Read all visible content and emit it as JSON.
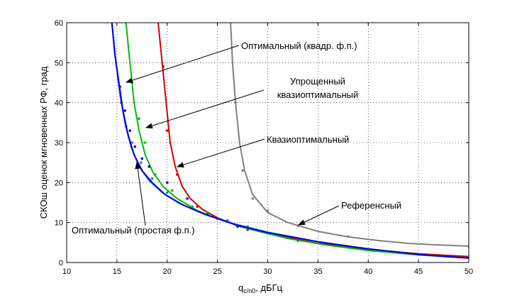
{
  "chart_data": {
    "type": "line",
    "xlabel": "q",
    "xlabel_sub": "c/n0",
    "xlabel_unit": ", дБГц",
    "ylabel": "СКОш оценок мгновенных РФ, град",
    "xlim": [
      10,
      50
    ],
    "ylim": [
      0,
      60
    ],
    "xticks": [
      10,
      15,
      20,
      25,
      30,
      35,
      40,
      45,
      50
    ],
    "yticks": [
      0,
      10,
      20,
      30,
      40,
      50,
      60
    ],
    "grid": true,
    "series": [
      {
        "key": "reference",
        "color": "#808080",
        "x": [
          26.3,
          26.5,
          26.8,
          27.2,
          27.7,
          28.5,
          30,
          32,
          35,
          38,
          41,
          44,
          47,
          50
        ],
        "y": [
          60,
          50,
          40,
          30,
          23,
          17,
          12.5,
          10,
          7.8,
          6.4,
          5.5,
          4.8,
          4.4,
          4.1
        ],
        "markers": {
          "x": [
            26.8,
            27.5,
            28.5,
            30,
            33,
            38,
            50
          ],
          "y": [
            40,
            23,
            16,
            13,
            9.2,
            6.5,
            4
          ]
        }
      },
      {
        "key": "quasi",
        "color": "#cc0000",
        "x": [
          19.1,
          19.5,
          19.9,
          20.3,
          20.8,
          21.5,
          22.3,
          23.5,
          25,
          27,
          30,
          35,
          40,
          45,
          50
        ],
        "y": [
          60,
          50,
          40,
          30,
          24,
          19,
          16,
          13.3,
          11.2,
          9.2,
          7.2,
          4.8,
          3.3,
          2.2,
          1.5
        ],
        "markers": {
          "x": [
            19.6,
            20,
            21,
            23,
            25,
            28,
            33
          ],
          "y": [
            49,
            33,
            22,
            14,
            11,
            8.2,
            5.5
          ]
        }
      },
      {
        "key": "simplified",
        "color": "#00bb00",
        "x": [
          15.9,
          16.3,
          16.7,
          17.2,
          17.8,
          18.6,
          19.6,
          21,
          23,
          25,
          28,
          32,
          36,
          40,
          45,
          50
        ],
        "y": [
          60,
          50,
          40,
          33,
          27,
          22.5,
          19,
          16,
          13,
          11,
          8.5,
          6,
          4.3,
          3,
          1.9,
          1.1
        ],
        "markers": {
          "x": [
            16.5,
            17.2,
            17.8,
            18.8,
            20.5,
            24,
            28
          ],
          "y": [
            45,
            36,
            30,
            22,
            18,
            12.5,
            9
          ]
        }
      },
      {
        "key": "optimal_quad",
        "color": "#2277dd",
        "x": [
          14.5,
          14.9,
          15.3,
          15.8,
          16.4,
          17.2,
          18.2,
          19.5,
          21.2,
          23.5,
          26.5,
          30,
          35,
          40,
          45,
          50
        ],
        "y": [
          60,
          50,
          42,
          35,
          29,
          24,
          20.5,
          17.5,
          14.8,
          12.3,
          9.8,
          7.6,
          5.2,
          3.4,
          2,
          1.1
        ],
        "markers": {
          "x": [
            15.4,
            15.9,
            16.5,
            17.4,
            18.5,
            20,
            22.5,
            26
          ],
          "y": [
            40,
            34,
            30,
            25,
            21,
            17.5,
            14,
            10.5
          ]
        }
      },
      {
        "key": "optimal_simple",
        "color": "#0000dd",
        "x": [
          14.5,
          14.8,
          15.2,
          15.6,
          16.1,
          16.7,
          17.5,
          18.5,
          19.8,
          21.5,
          23.8,
          27,
          30,
          35,
          40,
          45,
          50
        ],
        "y": [
          60,
          52,
          45,
          38,
          32,
          27,
          23,
          20,
          17,
          14.5,
          12,
          9.3,
          7.5,
          5.2,
          3.4,
          2,
          1.1
        ],
        "markers": {
          "x": [
            15.3,
            15.8,
            16.3,
            16.8,
            17.5,
            18.2,
            20,
            22,
            24,
            27
          ],
          "y": [
            44,
            38,
            33,
            29,
            26,
            24,
            20,
            16,
            12,
            9
          ]
        }
      }
    ],
    "annotations": [
      {
        "key": "optimal_quad",
        "lines": [
          "Оптимальный (квадр. ф.п.)"
        ]
      },
      {
        "key": "simplified",
        "lines": [
          "Упрощенный",
          "квазиоптимальный"
        ]
      },
      {
        "key": "quasi",
        "lines": [
          "Квазиоптимальный"
        ]
      },
      {
        "key": "reference",
        "lines": [
          "Референсный"
        ]
      },
      {
        "key": "optimal_simple",
        "lines": [
          "Оптимальный (простая ф.п.)"
        ]
      }
    ]
  }
}
